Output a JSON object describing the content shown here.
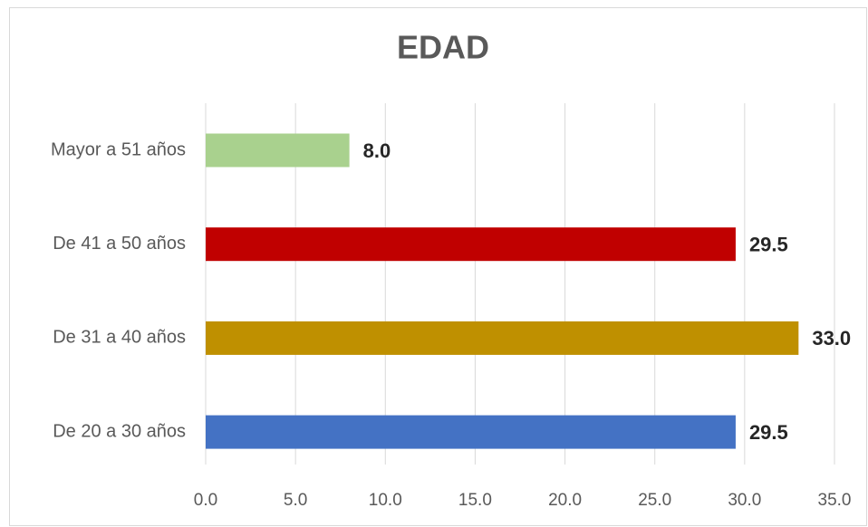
{
  "chart_data": {
    "type": "bar",
    "orientation": "horizontal",
    "title": "EDAD",
    "categories": [
      "Mayor a 51 años",
      "De 41 a 50 años",
      "De 31 a 40 años",
      "De 20 a 30 años"
    ],
    "values": [
      8,
      29.5,
      33,
      29.5
    ],
    "value_labels": [
      "8.0",
      "29.5",
      "33.0",
      "29.5"
    ],
    "colors": [
      "#a9d18e",
      "#c00000",
      "#bf9000",
      "#4472c4"
    ],
    "xlim": [
      0,
      35
    ],
    "xticks": [
      {
        "value": 0,
        "label": "0.0"
      },
      {
        "value": 5,
        "label": "5.0"
      },
      {
        "value": 10,
        "label": "10.0"
      },
      {
        "value": 15,
        "label": "15.0"
      },
      {
        "value": 20,
        "label": "20.0"
      },
      {
        "value": 25,
        "label": "25.0"
      },
      {
        "value": 30,
        "label": "30.0"
      },
      {
        "value": 35,
        "label": "35.0"
      }
    ],
    "grid": true
  }
}
